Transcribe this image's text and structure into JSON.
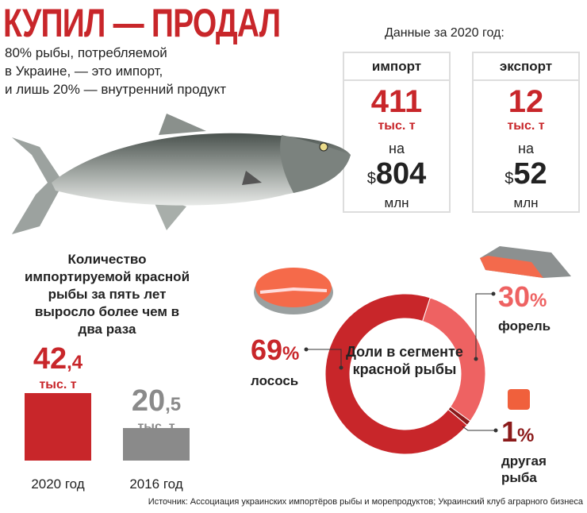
{
  "title": "КУПИЛ — ПРОДАЛ",
  "subtitle": [
    "80% рыбы, потребляемой",
    "в Украине, — это импорт,",
    "и лишь 20% — внутренний продукт"
  ],
  "data_year": "Данные за 2020 год:",
  "import": {
    "header": "импорт",
    "volume": "411",
    "unit": "тыс. т",
    "on": "на",
    "currency": "$",
    "value": "804",
    "value_unit": "млн"
  },
  "export": {
    "header": "экспорт",
    "volume": "12",
    "unit": "тыс. т",
    "on": "на",
    "currency": "$",
    "value": "52",
    "value_unit": "млн"
  },
  "colors": {
    "accent": "#c8262a",
    "gray": "#8a8a8a",
    "trout": "#ee6262",
    "other": "#8b1a1a"
  },
  "chart_data": [
    {
      "type": "bar",
      "title": "Количество импортируемой красной рыбы за пять лет выросло более чем в два раза",
      "categories": [
        "2020 год",
        "2016 год"
      ],
      "values": [
        42.4,
        20.5
      ],
      "labels": [
        {
          "int": "42",
          "dec": ",4"
        },
        {
          "int": "20",
          "dec": ",5"
        }
      ],
      "unit": "тыс. т",
      "colors": [
        "#c8262a",
        "#8a8a8a"
      ]
    },
    {
      "type": "pie",
      "title": "Доли в сегменте красной рыбы",
      "donut": true,
      "slices": [
        {
          "label": "лосось",
          "value": 69,
          "text": "69",
          "color": "#c8262a"
        },
        {
          "label": "форель",
          "value": 30,
          "text": "30",
          "color": "#ee6262"
        },
        {
          "label": "другая рыба",
          "value": 1,
          "text": "1",
          "color": "#8b1a1a"
        }
      ],
      "percent_sign": "%"
    }
  ],
  "source": "Источник: Ассоциация украинских импортёров рыбы и морепродуктов; Украинский клуб аграрного бизнеса"
}
